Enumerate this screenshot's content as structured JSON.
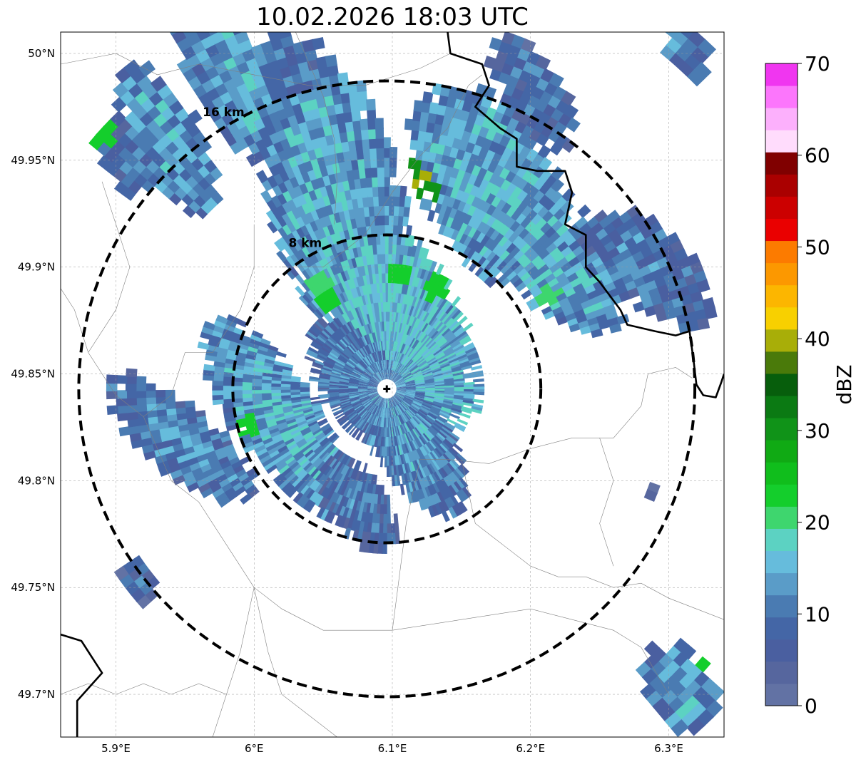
{
  "title": "10.02.2026 18:03 UTC",
  "map": {
    "lon_range": [
      5.86,
      6.34
    ],
    "lat_range": [
      49.68,
      50.01
    ],
    "radar_site": {
      "lon": 6.096,
      "lat": 49.843
    },
    "x_ticks": [
      {
        "value": 5.9,
        "label": "5.9°E"
      },
      {
        "value": 6.0,
        "label": "6°E"
      },
      {
        "value": 6.1,
        "label": "6.1°E"
      },
      {
        "value": 6.2,
        "label": "6.2°E"
      },
      {
        "value": 6.3,
        "label": "6.3°E"
      }
    ],
    "y_ticks": [
      {
        "value": 50.0,
        "label": "50°N"
      },
      {
        "value": 49.95,
        "label": "49.95°N"
      },
      {
        "value": 49.9,
        "label": "49.9°N"
      },
      {
        "value": 49.85,
        "label": "49.85°N"
      },
      {
        "value": 49.8,
        "label": "49.8°N"
      },
      {
        "value": 49.75,
        "label": "49.75°N"
      },
      {
        "value": 49.7,
        "label": "49.7°N"
      }
    ],
    "range_rings": [
      {
        "radius_km": 8,
        "label": "8 km"
      },
      {
        "radius_km": 16,
        "label": "16 km"
      }
    ],
    "gridlines": true
  },
  "colorbar": {
    "label": "dBZ",
    "min": 0,
    "max": 70,
    "tick_labels": [
      "0",
      "10",
      "20",
      "30",
      "40",
      "50",
      "60",
      "70"
    ],
    "colors": [
      "#6272a4",
      "#56669e",
      "#4a5fa0",
      "#4466a6",
      "#4a7bb2",
      "#5a9cc8",
      "#66bcdc",
      "#5cd2c2",
      "#3ed66e",
      "#14ce2c",
      "#10be1c",
      "#10aa14",
      "#109318",
      "#0b7a13",
      "#075e0c",
      "#4a7a0a",
      "#a8ae08",
      "#f8d000",
      "#fcb600",
      "#fc9800",
      "#fc7b00",
      "#ea0000",
      "#cc0000",
      "#aa0000",
      "#800000",
      "#ffdcfc",
      "#fcb0fc",
      "#fc76fc",
      "#f036f0"
    ]
  },
  "echo_regions": [
    {
      "center": [
        5.99,
        49.985
      ],
      "radius_km": [
        5.5,
        2.2
      ],
      "heading_deg": 300,
      "density": 1.0,
      "mean_dbz": 10
    },
    {
      "center": [
        6.06,
        49.93
      ],
      "radius_km": [
        8.5,
        3.5
      ],
      "heading_deg": 285,
      "density": 1.0,
      "mean_dbz": 11
    },
    {
      "center": [
        6.03,
        49.99
      ],
      "radius_km": [
        2.5,
        1.5
      ],
      "heading_deg": 300,
      "density": 0.7,
      "mean_dbz": 7
    },
    {
      "center": [
        6.17,
        49.935
      ],
      "radius_km": [
        6.0,
        3.5
      ],
      "heading_deg": 300,
      "density": 1.0,
      "mean_dbz": 11
    },
    {
      "center": [
        6.2,
        49.98
      ],
      "radius_km": [
        3.5,
        1.6
      ],
      "heading_deg": 300,
      "density": 0.9,
      "mean_dbz": 6
    },
    {
      "center": [
        6.1,
        49.88
      ],
      "radius_km": [
        7.0,
        3.0
      ],
      "heading_deg": 300,
      "density": 1.0,
      "mean_dbz": 13
    },
    {
      "center": [
        6.21,
        49.9
      ],
      "radius_km": [
        5.0,
        2.2
      ],
      "heading_deg": 320,
      "density": 1.0,
      "mean_dbz": 11
    },
    {
      "center": [
        6.28,
        49.9
      ],
      "radius_km": [
        4.5,
        2.0
      ],
      "heading_deg": 320,
      "density": 0.9,
      "mean_dbz": 7
    },
    {
      "center": [
        6.08,
        49.85
      ],
      "radius_km": [
        3.5,
        2.3
      ],
      "heading_deg": 300,
      "density": 0.9,
      "mean_dbz": 8
    },
    {
      "center": [
        6.11,
        49.825
      ],
      "radius_km": [
        5.0,
        2.0
      ],
      "heading_deg": 300,
      "density": 1.0,
      "mean_dbz": 9
    },
    {
      "center": [
        6.02,
        49.83
      ],
      "radius_km": [
        6.0,
        2.2
      ],
      "heading_deg": 305,
      "density": 1.0,
      "mean_dbz": 11
    },
    {
      "center": [
        5.95,
        49.82
      ],
      "radius_km": [
        5.0,
        1.8
      ],
      "heading_deg": 320,
      "density": 1.0,
      "mean_dbz": 8
    },
    {
      "center": [
        6.07,
        49.795
      ],
      "radius_km": [
        3.5,
        1.6
      ],
      "heading_deg": 310,
      "density": 1.0,
      "mean_dbz": 6
    },
    {
      "center": [
        5.94,
        49.958
      ],
      "radius_km": [
        4.5,
        1.8
      ],
      "heading_deg": 300,
      "density": 1.0,
      "mean_dbz": 10
    },
    {
      "center": [
        5.91,
        49.95
      ],
      "radius_km": [
        2.5,
        1.2
      ],
      "heading_deg": 300,
      "density": 0.8,
      "mean_dbz": 7
    },
    {
      "center": [
        5.92,
        49.755
      ],
      "radius_km": [
        1.2,
        0.9
      ],
      "heading_deg": 300,
      "density": 1.0,
      "mean_dbz": 4
    },
    {
      "center": [
        6.305,
        49.705
      ],
      "radius_km": [
        2.5,
        1.7
      ],
      "heading_deg": 300,
      "density": 1.0,
      "mean_dbz": 10
    },
    {
      "center": [
        6.31,
        50.0
      ],
      "radius_km": [
        1.8,
        1.0
      ],
      "heading_deg": 300,
      "density": 0.9,
      "mean_dbz": 9
    },
    {
      "center": [
        6.285,
        49.795
      ],
      "radius_km": [
        0.3,
        0.3
      ],
      "heading_deg": 0,
      "density": 1.0,
      "mean_dbz": 3
    }
  ],
  "echo_cores": [
    {
      "center": [
        6.12,
        49.94
      ],
      "dbz": 41
    },
    {
      "center": [
        6.114,
        49.945
      ],
      "dbz": 30
    },
    {
      "center": [
        6.126,
        49.934
      ],
      "dbz": 30
    },
    {
      "center": [
        6.105,
        49.895
      ],
      "dbz": 24
    },
    {
      "center": [
        6.05,
        49.89
      ],
      "dbz": 21
    },
    {
      "center": [
        6.13,
        49.888
      ],
      "dbz": 24
    },
    {
      "center": [
        6.055,
        49.883
      ],
      "dbz": 24
    },
    {
      "center": [
        6.16,
        49.87
      ],
      "dbz": 22
    },
    {
      "center": [
        6.21,
        49.885
      ],
      "dbz": 20
    },
    {
      "center": [
        6.0,
        49.827
      ],
      "dbz": 22
    },
    {
      "center": [
        5.895,
        49.96
      ],
      "dbz": 22
    },
    {
      "center": [
        5.942,
        49.99
      ],
      "dbz": 22
    },
    {
      "center": [
        6.32,
        49.72
      ],
      "dbz": 22
    },
    {
      "center": [
        6.335,
        49.715
      ],
      "dbz": 20
    }
  ],
  "borders": [
    [
      [
        6.14,
        50.01
      ],
      [
        6.142,
        50.0
      ],
      [
        6.165,
        49.995
      ],
      [
        6.17,
        49.985
      ],
      [
        6.16,
        49.975
      ],
      [
        6.178,
        49.965
      ],
      [
        6.19,
        49.96
      ],
      [
        6.19,
        49.947
      ],
      [
        6.205,
        49.945
      ],
      [
        6.225,
        49.945
      ],
      [
        6.23,
        49.935
      ],
      [
        6.225,
        49.92
      ],
      [
        6.24,
        49.915
      ],
      [
        6.24,
        49.9
      ],
      [
        6.25,
        49.893
      ],
      [
        6.265,
        49.88
      ],
      [
        6.27,
        49.873
      ],
      [
        6.29,
        49.87
      ],
      [
        6.305,
        49.868
      ],
      [
        6.315,
        49.87
      ],
      [
        6.318,
        49.856
      ],
      [
        6.32,
        49.845
      ],
      [
        6.325,
        49.84
      ],
      [
        6.334,
        49.839
      ],
      [
        6.338,
        49.846
      ],
      [
        6.34,
        49.85
      ]
    ],
    [
      [
        5.86,
        49.728
      ],
      [
        5.875,
        49.725
      ],
      [
        5.89,
        49.71
      ],
      [
        5.872,
        49.697
      ],
      [
        5.872,
        49.675
      ]
    ]
  ],
  "admin_lines": [
    [
      [
        5.86,
        49.995
      ],
      [
        5.9,
        50.0
      ],
      [
        5.93,
        49.99
      ],
      [
        5.96,
        49.995
      ],
      [
        6.0,
        49.99
      ],
      [
        6.04,
        49.985
      ],
      [
        6.08,
        49.985
      ],
      [
        6.12,
        49.993
      ],
      [
        6.142,
        50.0
      ]
    ],
    [
      [
        6.02,
        49.9
      ],
      [
        6.05,
        49.9
      ],
      [
        6.08,
        49.915
      ],
      [
        6.1,
        49.935
      ],
      [
        6.12,
        49.952
      ],
      [
        6.14,
        49.965
      ],
      [
        6.155,
        49.985
      ],
      [
        6.165,
        49.99
      ]
    ],
    [
      [
        6.03,
        50.01
      ],
      [
        6.04,
        49.995
      ],
      [
        6.05,
        49.98
      ],
      [
        6.058,
        49.96
      ],
      [
        6.06,
        49.94
      ],
      [
        6.058,
        49.92
      ]
    ],
    [
      [
        6.0,
        49.92
      ],
      [
        6.0,
        49.9
      ],
      [
        5.99,
        49.88
      ],
      [
        5.97,
        49.86
      ],
      [
        5.95,
        49.86
      ],
      [
        5.94,
        49.84
      ],
      [
        5.92,
        49.83
      ],
      [
        5.9,
        49.84
      ],
      [
        5.88,
        49.86
      ],
      [
        5.87,
        49.88
      ],
      [
        5.86,
        49.89
      ]
    ],
    [
      [
        5.88,
        49.86
      ],
      [
        5.9,
        49.88
      ],
      [
        5.91,
        49.9
      ],
      [
        5.9,
        49.92
      ],
      [
        5.89,
        49.94
      ]
    ],
    [
      [
        5.92,
        49.83
      ],
      [
        5.94,
        49.8
      ],
      [
        5.96,
        49.79
      ],
      [
        5.98,
        49.77
      ],
      [
        6.0,
        49.75
      ],
      [
        5.99,
        49.72
      ],
      [
        5.98,
        49.7
      ],
      [
        5.97,
        49.68
      ]
    ],
    [
      [
        6.0,
        49.75
      ],
      [
        6.02,
        49.74
      ],
      [
        6.05,
        49.73
      ],
      [
        6.1,
        49.73
      ],
      [
        6.15,
        49.735
      ],
      [
        6.2,
        49.74
      ],
      [
        6.23,
        49.735
      ],
      [
        6.26,
        49.73
      ],
      [
        6.28,
        49.722
      ],
      [
        6.3,
        49.7
      ]
    ],
    [
      [
        6.1,
        49.73
      ],
      [
        6.11,
        49.78
      ],
      [
        6.12,
        49.81
      ],
      [
        6.14,
        49.81
      ],
      [
        6.17,
        49.808
      ],
      [
        6.2,
        49.815
      ],
      [
        6.23,
        49.82
      ],
      [
        6.26,
        49.82
      ],
      [
        6.28,
        49.835
      ],
      [
        6.285,
        49.85
      ],
      [
        6.305,
        49.853
      ],
      [
        6.317,
        49.848
      ]
    ],
    [
      [
        5.86,
        49.7
      ],
      [
        5.88,
        49.705
      ],
      [
        5.9,
        49.7
      ],
      [
        5.92,
        49.705
      ],
      [
        5.94,
        49.7
      ],
      [
        5.96,
        49.705
      ],
      [
        5.98,
        49.7
      ]
    ],
    [
      [
        6.15,
        49.81
      ],
      [
        6.16,
        49.78
      ],
      [
        6.18,
        49.77
      ],
      [
        6.2,
        49.76
      ],
      [
        6.22,
        49.755
      ],
      [
        6.24,
        49.755
      ],
      [
        6.26,
        49.75
      ],
      [
        6.28,
        49.752
      ],
      [
        6.3,
        49.745
      ],
      [
        6.32,
        49.74
      ],
      [
        6.34,
        49.735
      ]
    ],
    [
      [
        6.25,
        49.82
      ],
      [
        6.26,
        49.8
      ],
      [
        6.25,
        49.78
      ],
      [
        6.26,
        49.76
      ]
    ],
    [
      [
        6.0,
        49.75
      ],
      [
        6.01,
        49.72
      ],
      [
        6.02,
        49.7
      ],
      [
        6.04,
        49.69
      ],
      [
        6.06,
        49.68
      ]
    ]
  ]
}
